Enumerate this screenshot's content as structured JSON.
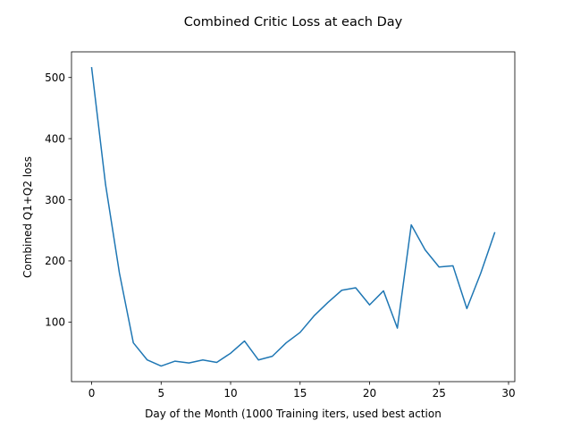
{
  "chart_data": {
    "type": "line",
    "title": "Combined Critic Loss at each Day",
    "xlabel": "Day of the Month (1000 Training iters, used best action",
    "ylabel": "Combined Q1+Q2 loss",
    "xlim": [
      -1.45,
      30.45
    ],
    "ylim": [
      2.5,
      542
    ],
    "xticks": [
      0,
      5,
      10,
      15,
      20,
      25,
      30
    ],
    "yticks": [
      100,
      200,
      300,
      400,
      500
    ],
    "grid": false,
    "color": "#1f77b4",
    "x": [
      0,
      1,
      2,
      3,
      4,
      5,
      6,
      7,
      8,
      9,
      10,
      11,
      12,
      13,
      14,
      15,
      16,
      17,
      18,
      19,
      20,
      21,
      22,
      23,
      24,
      25,
      26,
      27,
      28,
      29
    ],
    "y": [
      516,
      325,
      180,
      66,
      38,
      28,
      36,
      33,
      38,
      34,
      49,
      69,
      38,
      44,
      66,
      83,
      110,
      132,
      152,
      156,
      128,
      151,
      90,
      259,
      218,
      190,
      192,
      122,
      180,
      246
    ]
  }
}
